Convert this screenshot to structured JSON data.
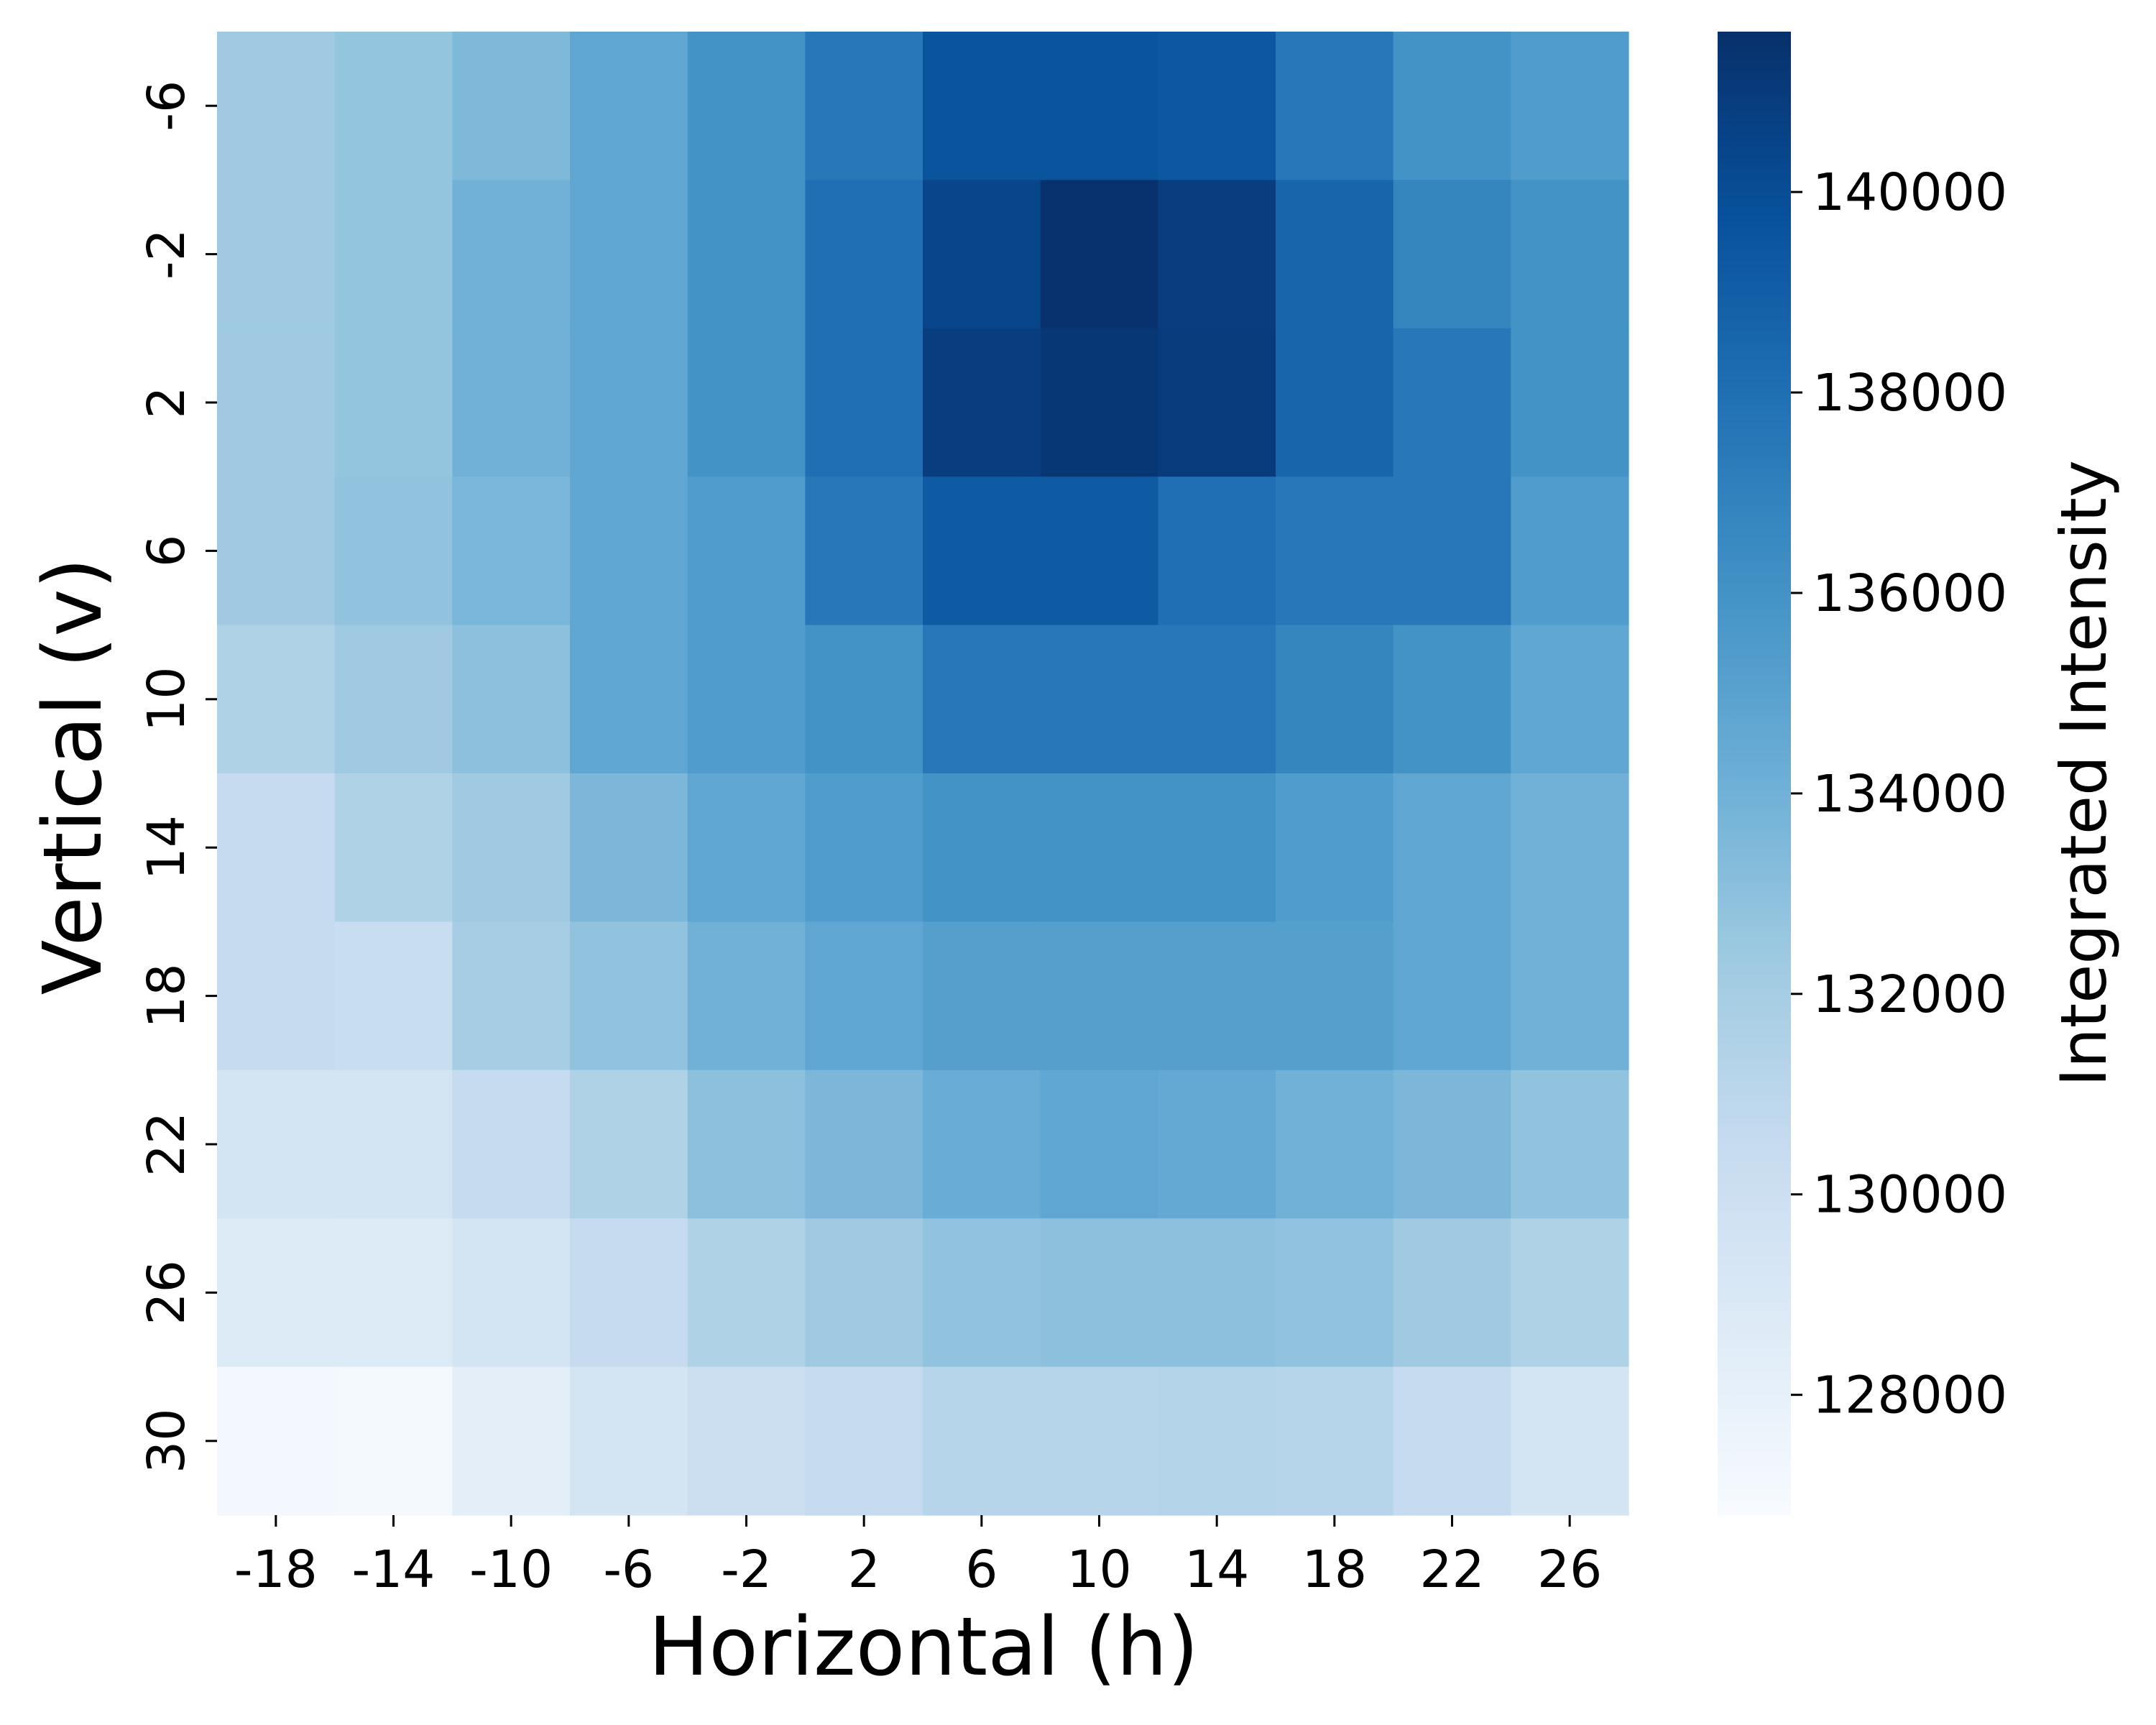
{
  "chart_data": {
    "type": "heatmap",
    "title": "",
    "xlabel": "Horizontal (h)",
    "ylabel": "Vertical (v)",
    "x": [
      -18,
      -14,
      -10,
      -6,
      -2,
      2,
      6,
      10,
      14,
      18,
      22,
      26
    ],
    "y": [
      -6,
      -2,
      2,
      6,
      10,
      14,
      18,
      22,
      26,
      30
    ],
    "values": [
      [
        132300,
        132700,
        133500,
        134700,
        136000,
        137500,
        139600,
        139600,
        139400,
        137500,
        136000,
        135400
      ],
      [
        132300,
        132700,
        134000,
        134700,
        136000,
        138000,
        140400,
        141500,
        140800,
        138600,
        136800,
        136000
      ],
      [
        132300,
        132700,
        134000,
        134700,
        136000,
        138000,
        140800,
        141200,
        141000,
        138600,
        137500,
        136000
      ],
      [
        132300,
        132800,
        133700,
        134700,
        135400,
        137500,
        139200,
        139200,
        138000,
        137500,
        137500,
        135400
      ],
      [
        131500,
        132300,
        133000,
        134700,
        135400,
        136000,
        137500,
        137500,
        137500,
        136800,
        136000,
        134700
      ],
      [
        130500,
        131500,
        132300,
        133600,
        134700,
        135400,
        136000,
        136000,
        136000,
        135400,
        134700,
        134000
      ],
      [
        130500,
        130300,
        132000,
        132800,
        134000,
        134700,
        135200,
        135200,
        135200,
        135200,
        134700,
        134000
      ],
      [
        129500,
        129500,
        130500,
        131500,
        133000,
        133600,
        134300,
        134700,
        134500,
        134000,
        133600,
        132800
      ],
      [
        128700,
        128800,
        129500,
        130500,
        131500,
        132300,
        132800,
        133000,
        133000,
        132800,
        132300,
        131500
      ],
      [
        127200,
        127000,
        128300,
        129500,
        130000,
        130500,
        131200,
        131200,
        131400,
        131200,
        130500,
        129500
      ]
    ],
    "colorbar": {
      "label": "Integrated Intensity",
      "min": 126800,
      "max": 141600,
      "ticks": [
        128000,
        130000,
        132000,
        134000,
        136000,
        138000,
        140000
      ],
      "colormap": "Blues",
      "stops": [
        "#f7fbff",
        "#deebf7",
        "#c6dbef",
        "#9ecae1",
        "#6baed6",
        "#4292c6",
        "#2171b5",
        "#08519c",
        "#08306b"
      ]
    },
    "grid": false
  }
}
